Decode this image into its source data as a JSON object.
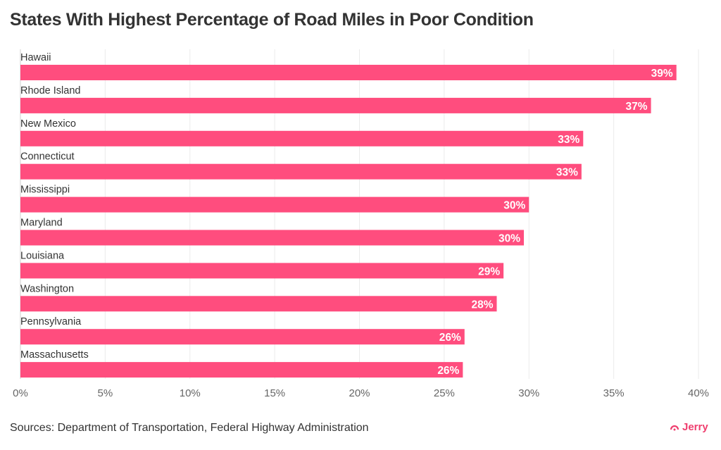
{
  "chart_data": {
    "type": "bar",
    "orientation": "horizontal",
    "title": "States With Highest Percentage of Road Miles in Poor Condition",
    "categories": [
      "Hawaii",
      "Rhode Island",
      "New Mexico",
      "Connecticut",
      "Mississippi",
      "Maryland",
      "Louisiana",
      "Washington",
      "Pennsylvania",
      "Massachusetts"
    ],
    "values": [
      38.7,
      37.2,
      33.2,
      33.1,
      30.0,
      29.7,
      28.5,
      28.1,
      26.2,
      26.1
    ],
    "data_labels": [
      "39%",
      "37%",
      "33%",
      "33%",
      "30%",
      "30%",
      "29%",
      "28%",
      "26%",
      "26%"
    ],
    "xlim": [
      0,
      40
    ],
    "x_ticks": [
      "0%",
      "5%",
      "10%",
      "15%",
      "20%",
      "25%",
      "30%",
      "35%",
      "40%"
    ],
    "grid": true,
    "bar_color": "#ff4d7e"
  },
  "footer": {
    "source": "Sources: Department of Transportation, Federal Highway Administration",
    "logo": "Jerry",
    "logo_color": "#ef3e6e"
  }
}
